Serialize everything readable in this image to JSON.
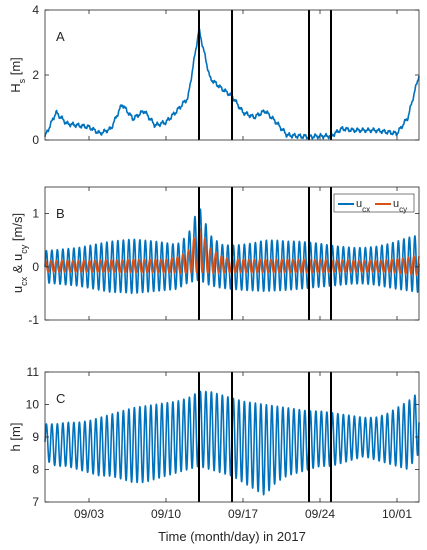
{
  "chart_data": [
    {
      "type": "line",
      "panel": "A",
      "ylabel": "H_s [m]",
      "ylim": [
        0,
        4
      ],
      "yticks": [
        0,
        2,
        4
      ],
      "xlim": [
        "08/30",
        "10/03"
      ],
      "series": [
        {
          "name": "",
          "color": "#0072BD",
          "x": [
            "08/30",
            "08/31",
            "09/01",
            "09/02",
            "09/03",
            "09/04",
            "09/05",
            "09/06",
            "09/07",
            "09/08",
            "09/09",
            "09/10",
            "09/11",
            "09/12",
            "09/13",
            "09/14",
            "09/15",
            "09/16",
            "09/17",
            "09/18",
            "09/19",
            "09/20",
            "09/21",
            "09/22",
            "09/23",
            "09/24",
            "09/25",
            "09/26",
            "09/27",
            "09/28",
            "09/29",
            "09/30",
            "10/01",
            "10/02",
            "10/03"
          ],
          "values": [
            0.1,
            0.85,
            0.5,
            0.45,
            0.4,
            0.2,
            0.35,
            1.1,
            0.65,
            0.9,
            0.45,
            0.55,
            0.9,
            1.3,
            3.4,
            1.9,
            1.6,
            1.35,
            0.85,
            0.7,
            0.9,
            0.55,
            0.15,
            0.12,
            0.1,
            0.12,
            0.12,
            0.35,
            0.3,
            0.3,
            0.3,
            0.25,
            0.2,
            0.7,
            2.0
          ]
        }
      ],
      "vertical_lines": [
        "09/13",
        "09/16",
        "09/23",
        "09/25"
      ]
    },
    {
      "type": "line",
      "panel": "B",
      "ylabel": "u_cx & u_cy [m/s]",
      "ylim": [
        -1,
        1.5
      ],
      "yticks": [
        -1,
        0,
        1
      ],
      "xlim": [
        "08/30",
        "10/03"
      ],
      "legend": {
        "placement": "top-right"
      },
      "series": [
        {
          "name": "u_cx",
          "color": "#0072BD",
          "x": [
            "08/30",
            "08/31",
            "09/01",
            "09/02",
            "09/03",
            "09/04",
            "09/05",
            "09/06",
            "09/07",
            "09/08",
            "09/09",
            "09/10",
            "09/11",
            "09/12",
            "09/13",
            "09/14",
            "09/15",
            "09/16",
            "09/17",
            "09/18",
            "09/19",
            "09/20",
            "09/21",
            "09/22",
            "09/23",
            "09/24",
            "09/25",
            "09/26",
            "09/27",
            "09/28",
            "09/29",
            "09/30",
            "10/01",
            "10/02",
            "10/03"
          ],
          "values_max": [
            0.3,
            0.32,
            0.34,
            0.36,
            0.4,
            0.44,
            0.48,
            0.5,
            0.52,
            0.5,
            0.48,
            0.45,
            0.42,
            0.6,
            1.15,
            0.6,
            0.42,
            0.4,
            0.42,
            0.45,
            0.5,
            0.5,
            0.48,
            0.48,
            0.46,
            0.44,
            0.4,
            0.38,
            0.36,
            0.36,
            0.38,
            0.42,
            0.48,
            0.55,
            0.6
          ],
          "values_min": [
            -0.3,
            -0.32,
            -0.34,
            -0.36,
            -0.4,
            -0.44,
            -0.48,
            -0.48,
            -0.5,
            -0.48,
            -0.46,
            -0.44,
            -0.42,
            -0.3,
            -0.25,
            -0.35,
            -0.4,
            -0.42,
            -0.44,
            -0.45,
            -0.46,
            -0.45,
            -0.44,
            -0.42,
            -0.4,
            -0.38,
            -0.36,
            -0.34,
            -0.32,
            -0.32,
            -0.34,
            -0.38,
            -0.42,
            -0.45,
            -0.48
          ],
          "cycles_per_day": 2
        },
        {
          "name": "u_cy",
          "color": "#D95319",
          "x": [
            "08/30",
            "08/31",
            "09/01",
            "09/02",
            "09/03",
            "09/04",
            "09/05",
            "09/06",
            "09/07",
            "09/08",
            "09/09",
            "09/10",
            "09/11",
            "09/12",
            "09/13",
            "09/14",
            "09/15",
            "09/16",
            "09/17",
            "09/18",
            "09/19",
            "09/20",
            "09/21",
            "09/22",
            "09/23",
            "09/24",
            "09/25",
            "09/26",
            "09/27",
            "09/28",
            "09/29",
            "09/30",
            "10/01",
            "10/02",
            "10/03"
          ],
          "values_max": [
            0.12,
            0.12,
            0.12,
            0.12,
            0.12,
            0.13,
            0.13,
            0.13,
            0.14,
            0.14,
            0.14,
            0.14,
            0.18,
            0.3,
            0.75,
            0.35,
            0.2,
            0.14,
            0.14,
            0.14,
            0.14,
            0.14,
            0.14,
            0.14,
            0.14,
            0.14,
            0.13,
            0.13,
            0.12,
            0.12,
            0.12,
            0.13,
            0.15,
            0.18,
            0.22
          ],
          "values_min": [
            -0.1,
            -0.1,
            -0.1,
            -0.1,
            -0.1,
            -0.1,
            -0.1,
            -0.11,
            -0.11,
            -0.11,
            -0.11,
            -0.11,
            -0.12,
            -0.12,
            -0.1,
            -0.12,
            -0.12,
            -0.11,
            -0.11,
            -0.11,
            -0.11,
            -0.11,
            -0.11,
            -0.11,
            -0.11,
            -0.11,
            -0.1,
            -0.1,
            -0.1,
            -0.1,
            -0.1,
            -0.1,
            -0.12,
            -0.14,
            -0.16
          ],
          "cycles_per_day": 2
        }
      ],
      "vertical_lines": [
        "09/13",
        "09/16",
        "09/23",
        "09/25"
      ]
    },
    {
      "type": "line",
      "panel": "C",
      "ylabel": "h [m]",
      "xlabel": "Time (month/day) in 2017",
      "ylim": [
        7,
        11
      ],
      "yticks": [
        7,
        8,
        9,
        10,
        11
      ],
      "xlim": [
        "08/30",
        "10/03"
      ],
      "xticks": [
        "09/03",
        "09/10",
        "09/17",
        "09/24",
        "10/01"
      ],
      "series": [
        {
          "name": "",
          "color": "#0072BD",
          "x": [
            "08/30",
            "08/31",
            "09/01",
            "09/02",
            "09/03",
            "09/04",
            "09/05",
            "09/06",
            "09/07",
            "09/08",
            "09/09",
            "09/10",
            "09/11",
            "09/12",
            "09/13",
            "09/14",
            "09/15",
            "09/16",
            "09/17",
            "09/18",
            "09/19",
            "09/20",
            "09/21",
            "09/22",
            "09/23",
            "09/24",
            "09/25",
            "09/26",
            "09/27",
            "09/28",
            "09/29",
            "09/30",
            "10/01",
            "10/02",
            "10/03"
          ],
          "values_max": [
            9.4,
            9.4,
            9.45,
            9.45,
            9.5,
            9.6,
            9.7,
            9.8,
            9.9,
            9.95,
            10.0,
            10.05,
            10.1,
            10.2,
            10.4,
            10.4,
            10.3,
            10.2,
            10.1,
            10.05,
            10.0,
            9.95,
            9.9,
            9.85,
            9.8,
            9.8,
            9.75,
            9.7,
            9.65,
            9.6,
            9.6,
            9.7,
            9.9,
            10.1,
            10.4
          ],
          "values_min": [
            8.3,
            8.1,
            8.1,
            8.0,
            7.9,
            7.8,
            7.8,
            7.7,
            7.6,
            7.6,
            7.7,
            7.8,
            7.9,
            8.0,
            8.1,
            8.0,
            7.9,
            7.8,
            7.6,
            7.4,
            7.2,
            7.6,
            7.8,
            7.9,
            8.0,
            8.1,
            8.1,
            8.2,
            8.3,
            8.4,
            8.3,
            8.2,
            8.1,
            8.0,
            8.5
          ],
          "cycles_per_day": 2
        }
      ],
      "vertical_lines": [
        "09/13",
        "09/16",
        "09/23",
        "09/25"
      ]
    }
  ],
  "labels": {
    "panel_a": "A",
    "panel_b": "B",
    "panel_c": "C",
    "ylabel_a_main": "H",
    "ylabel_a_sub": "s",
    "ylabel_a_unit": " [m]",
    "ylabel_b_u1": "u",
    "ylabel_b_sub1": "cx",
    "ylabel_b_amp": " & ",
    "ylabel_b_u2": "u",
    "ylabel_b_sub2": "cy",
    "ylabel_b_unit": " [m/s]",
    "ylabel_c": "h [m]",
    "xlabel": "Time (month/day) in 2017",
    "legend_b_1_main": "u",
    "legend_b_1_sub": "cx",
    "legend_b_2_main": "u",
    "legend_b_2_sub": "cy"
  }
}
